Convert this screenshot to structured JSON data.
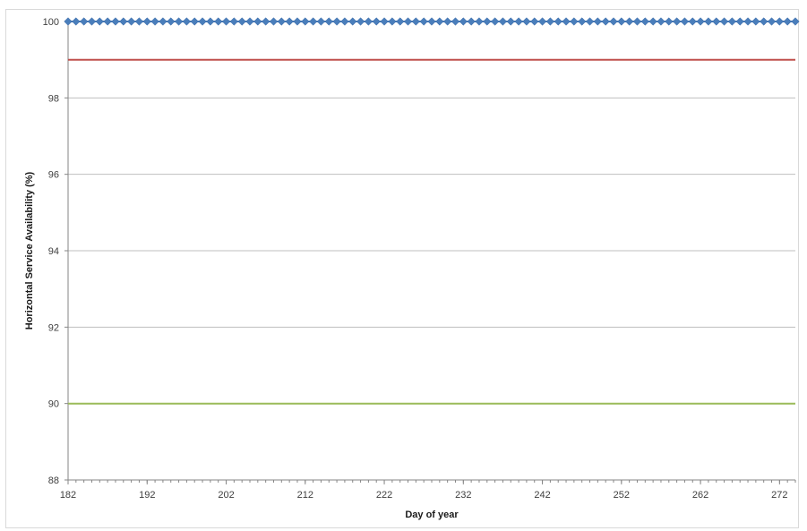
{
  "chart_data": {
    "type": "line",
    "title": "",
    "xlabel": "Day of year",
    "ylabel": "Horizontal Service Availability (%)",
    "xlim": [
      182,
      274
    ],
    "ylim": [
      88,
      100
    ],
    "x_ticks": [
      182,
      192,
      202,
      212,
      222,
      232,
      242,
      252,
      262,
      272
    ],
    "y_ticks": [
      88,
      90,
      92,
      94,
      96,
      98,
      100
    ],
    "grid": "horizontal",
    "legend": "none",
    "series": [
      {
        "color": "#4a7ebb",
        "marker": "diamond",
        "x_start": 182,
        "x_end": 274,
        "x_step": 1,
        "y_constant": 100
      },
      {
        "color": "#c0504d",
        "marker": "none",
        "x": [
          182,
          274
        ],
        "y": [
          99,
          99
        ]
      },
      {
        "color": "#9bbb59",
        "marker": "none",
        "x": [
          182,
          274
        ],
        "y": [
          90,
          90
        ]
      }
    ]
  }
}
